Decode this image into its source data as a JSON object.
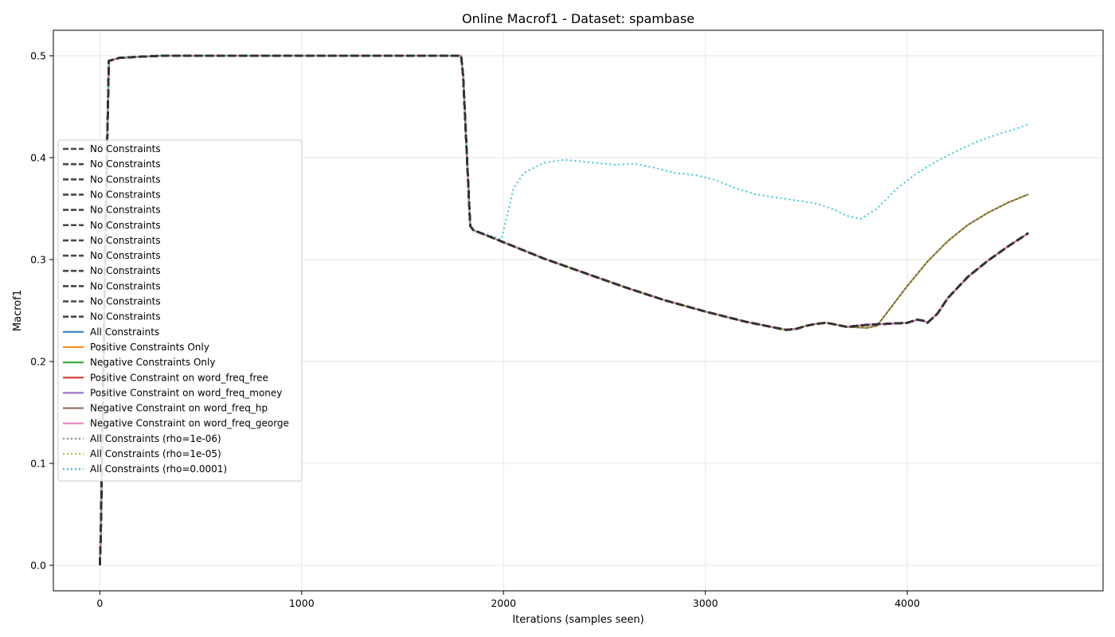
{
  "chart_data": {
    "type": "line",
    "title": "Online Macrof1 - Dataset: spambase",
    "xlabel": "Iterations (samples seen)",
    "ylabel": "Macrof1",
    "xlim": [
      -230,
      4970
    ],
    "ylim": [
      -0.025,
      0.525
    ],
    "xticks": [
      0,
      1000,
      2000,
      3000,
      4000
    ],
    "yticks": [
      0.0,
      0.1,
      0.2,
      0.3,
      0.4,
      0.5
    ],
    "xtick_labels": [
      "0",
      "1000",
      "2000",
      "3000",
      "4000"
    ],
    "ytick_labels": [
      "0.0",
      "0.1",
      "0.2",
      "0.3",
      "0.4",
      "0.5"
    ],
    "grid": true,
    "legend_position": "center-left",
    "series": [
      {
        "name": "No Constraints",
        "color": "#333333",
        "style": "dashed",
        "curve": "base"
      },
      {
        "name": "No Constraints",
        "color": "#333333",
        "style": "dashed",
        "curve": "base"
      },
      {
        "name": "No Constraints",
        "color": "#333333",
        "style": "dashed",
        "curve": "base"
      },
      {
        "name": "No Constraints",
        "color": "#333333",
        "style": "dashed",
        "curve": "base"
      },
      {
        "name": "No Constraints",
        "color": "#333333",
        "style": "dashed",
        "curve": "base"
      },
      {
        "name": "No Constraints",
        "color": "#333333",
        "style": "dashed",
        "curve": "base"
      },
      {
        "name": "No Constraints",
        "color": "#333333",
        "style": "dashed",
        "curve": "base"
      },
      {
        "name": "No Constraints",
        "color": "#333333",
        "style": "dashed",
        "curve": "base"
      },
      {
        "name": "No Constraints",
        "color": "#333333",
        "style": "dashed",
        "curve": "base"
      },
      {
        "name": "No Constraints",
        "color": "#333333",
        "style": "dashed",
        "curve": "base"
      },
      {
        "name": "No Constraints",
        "color": "#333333",
        "style": "dashed",
        "curve": "base"
      },
      {
        "name": "No Constraints",
        "color": "#333333",
        "style": "dashed",
        "curve": "base"
      },
      {
        "name": "All Constraints",
        "color": "#1f77b4",
        "style": "solid",
        "curve": "base"
      },
      {
        "name": "Positive Constraints Only",
        "color": "#ff7f0e",
        "style": "solid",
        "curve": "base"
      },
      {
        "name": "Negative Constraints Only",
        "color": "#2ca02c",
        "style": "solid",
        "curve": "green"
      },
      {
        "name": "Positive Constraint on word_freq_free",
        "color": "#d62728",
        "style": "solid",
        "curve": "base"
      },
      {
        "name": "Positive Constraint on word_freq_money",
        "color": "#9467bd",
        "style": "solid",
        "curve": "base"
      },
      {
        "name": "Negative Constraint on word_freq_hp",
        "color": "#8c564b",
        "style": "solid",
        "curve": "green"
      },
      {
        "name": "Negative Constraint on word_freq_george",
        "color": "#e377c2",
        "style": "solid",
        "curve": "base"
      },
      {
        "name": "All Constraints (rho=1e-06)",
        "color": "#7f7f7f",
        "style": "dotted",
        "curve": "green"
      },
      {
        "name": "All Constraints (rho=1e-05)",
        "color": "#bcbd22",
        "style": "dotted",
        "curve": "green"
      },
      {
        "name": "All Constraints (rho=0.0001)",
        "color": "#17becf",
        "style": "dotted",
        "curve": "cyan"
      }
    ],
    "curves": {
      "base": {
        "x": [
          0,
          5,
          15,
          30,
          45,
          100,
          300,
          1000,
          1790,
          1800,
          1835,
          1850,
          2000,
          2200,
          2400,
          2600,
          2800,
          3000,
          3200,
          3400,
          3450,
          3500,
          3550,
          3600,
          3700,
          3800,
          3900,
          4000,
          4050,
          4080,
          4100,
          4150,
          4200,
          4300,
          4400,
          4500,
          4600
        ],
        "y": [
          0.0,
          0.03,
          0.15,
          0.35,
          0.495,
          0.498,
          0.5,
          0.5,
          0.5,
          0.48,
          0.333,
          0.329,
          0.317,
          0.301,
          0.287,
          0.273,
          0.26,
          0.249,
          0.239,
          0.231,
          0.232,
          0.235,
          0.237,
          0.238,
          0.234,
          0.236,
          0.237,
          0.238,
          0.241,
          0.24,
          0.238,
          0.247,
          0.262,
          0.283,
          0.299,
          0.313,
          0.326
        ]
      },
      "green": {
        "x": [
          0,
          5,
          15,
          30,
          45,
          100,
          300,
          1000,
          1790,
          1800,
          1835,
          1850,
          2000,
          2200,
          2400,
          2600,
          2800,
          3000,
          3200,
          3400,
          3450,
          3500,
          3550,
          3600,
          3700,
          3800,
          3850,
          3900,
          4000,
          4100,
          4200,
          4300,
          4400,
          4500,
          4600
        ],
        "y": [
          0.0,
          0.03,
          0.15,
          0.35,
          0.495,
          0.498,
          0.5,
          0.5,
          0.5,
          0.48,
          0.333,
          0.329,
          0.317,
          0.301,
          0.287,
          0.273,
          0.26,
          0.249,
          0.239,
          0.231,
          0.232,
          0.235,
          0.237,
          0.238,
          0.234,
          0.233,
          0.235,
          0.248,
          0.274,
          0.298,
          0.318,
          0.334,
          0.346,
          0.356,
          0.364
        ]
      },
      "cyan": {
        "x": [
          0,
          5,
          15,
          30,
          45,
          100,
          300,
          1000,
          1790,
          1800,
          1835,
          1850,
          1990,
          2050,
          2100,
          2200,
          2300,
          2350,
          2450,
          2550,
          2650,
          2750,
          2850,
          2950,
          3050,
          3150,
          3250,
          3350,
          3450,
          3550,
          3650,
          3700,
          3770,
          3850,
          3950,
          4050,
          4150,
          4250,
          4350,
          4450,
          4550,
          4600
        ],
        "y": [
          0.0,
          0.03,
          0.15,
          0.35,
          0.495,
          0.498,
          0.5,
          0.5,
          0.5,
          0.48,
          0.333,
          0.329,
          0.32,
          0.37,
          0.385,
          0.395,
          0.398,
          0.397,
          0.395,
          0.393,
          0.394,
          0.39,
          0.385,
          0.383,
          0.378,
          0.37,
          0.364,
          0.361,
          0.358,
          0.355,
          0.348,
          0.343,
          0.34,
          0.35,
          0.37,
          0.385,
          0.397,
          0.407,
          0.416,
          0.423,
          0.429,
          0.433
        ]
      }
    }
  }
}
